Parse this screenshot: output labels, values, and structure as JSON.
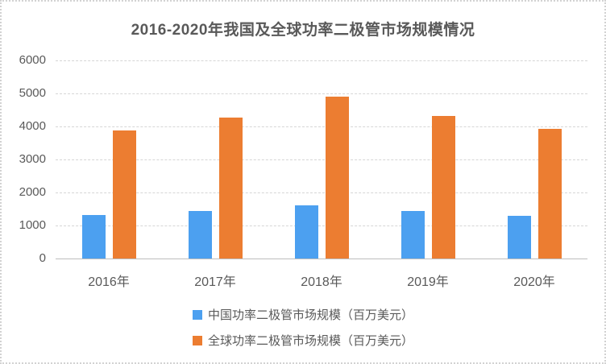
{
  "title": "2016-2020年我国及全球功率二极管市场规模情况",
  "colors": {
    "china_series": "#4CA0F0",
    "global_series": "#EC7D31",
    "title_text": "#595959",
    "axis_text": "#595959",
    "gridline": "#D6D6D6",
    "zero_line": "#BDBDBD",
    "card_border": "#D2D2D2",
    "background": "#FFFFFF"
  },
  "chart_data": {
    "type": "bar",
    "title": "2016-2020年我国及全球功率二极管市场规模情况",
    "categories": [
      "2016年",
      "2017年",
      "2018年",
      "2019年",
      "2020年"
    ],
    "series": [
      {
        "name": "中国功率二极管市场规模（百万美元）",
        "color": "#4CA0F0",
        "values": [
          1320,
          1440,
          1600,
          1440,
          1300
        ]
      },
      {
        "name": "全球功率二极管市场规模（百万美元）",
        "color": "#EC7D31",
        "values": [
          3880,
          4280,
          4900,
          4310,
          3920
        ]
      }
    ],
    "xlabel": "",
    "ylabel": "",
    "ylim": [
      0,
      6000
    ],
    "yticks": [
      0,
      1000,
      2000,
      3000,
      4000,
      5000,
      6000
    ],
    "grid": "horizontal-dashed",
    "legend_position": "bottom"
  }
}
